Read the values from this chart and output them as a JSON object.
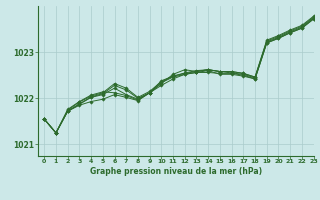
{
  "xlabel": "Graphe pression niveau de la mer (hPa)",
  "background_color": "#cce8e8",
  "grid_color": "#aacccc",
  "line_color": "#2d6b2d",
  "xlim": [
    -0.5,
    23
  ],
  "ylim": [
    1020.75,
    1024.0
  ],
  "yticks": [
    1021,
    1022,
    1023
  ],
  "xticks": [
    0,
    1,
    2,
    3,
    4,
    5,
    6,
    7,
    8,
    9,
    10,
    11,
    12,
    13,
    14,
    15,
    16,
    17,
    18,
    19,
    20,
    21,
    22,
    23
  ],
  "series": [
    [
      1021.55,
      1021.25,
      1021.72,
      1021.85,
      1021.93,
      1021.98,
      1022.08,
      1022.02,
      1021.95,
      1022.12,
      1022.28,
      1022.42,
      1022.52,
      1022.56,
      1022.6,
      1022.52,
      1022.52,
      1022.48,
      1022.42,
      1023.2,
      1023.3,
      1023.42,
      1023.52,
      1023.72
    ],
    [
      1021.55,
      1021.25,
      1021.72,
      1021.87,
      1022.02,
      1022.08,
      1022.22,
      1022.08,
      1021.98,
      1022.12,
      1022.38,
      1022.48,
      1022.55,
      1022.6,
      1022.62,
      1022.58,
      1022.55,
      1022.52,
      1022.44,
      1023.22,
      1023.32,
      1023.44,
      1023.54,
      1023.74
    ],
    [
      1021.55,
      1021.25,
      1021.72,
      1021.88,
      1022.03,
      1022.1,
      1022.28,
      1022.18,
      1022.0,
      1022.12,
      1022.34,
      1022.46,
      1022.52,
      1022.56,
      1022.56,
      1022.54,
      1022.54,
      1022.5,
      1022.42,
      1023.2,
      1023.3,
      1023.42,
      1023.52,
      1023.72
    ],
    [
      1021.55,
      1021.25,
      1021.74,
      1021.92,
      1022.05,
      1022.12,
      1022.32,
      1022.22,
      1022.02,
      1022.15,
      1022.36,
      1022.48,
      1022.54,
      1022.58,
      1022.62,
      1022.58,
      1022.58,
      1022.54,
      1022.46,
      1023.24,
      1023.34,
      1023.46,
      1023.56,
      1023.76
    ],
    [
      1021.55,
      1021.25,
      1021.76,
      1021.93,
      1022.07,
      1022.14,
      1022.12,
      1022.06,
      1021.96,
      1022.12,
      1022.32,
      1022.52,
      1022.62,
      1022.58,
      1022.62,
      1022.58,
      1022.58,
      1022.54,
      1022.46,
      1023.26,
      1023.36,
      1023.48,
      1023.58,
      1023.78
    ]
  ]
}
